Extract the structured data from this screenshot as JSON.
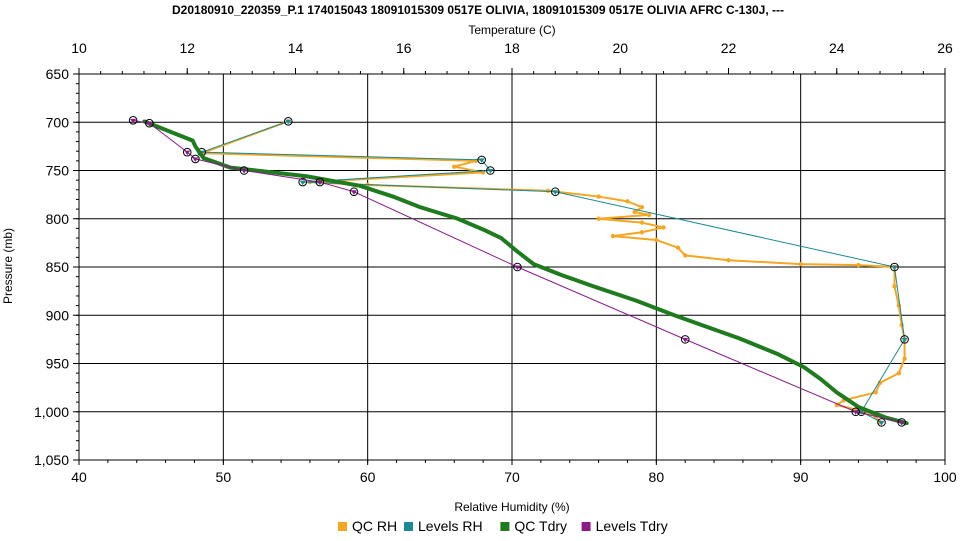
{
  "chart_data": {
    "type": "line",
    "title": "D20180910_220359_P.1 174015043 18091015309 0517E OLIVIA, 18091015309 0517E OLIVIA AFRC C-130J, ---",
    "top_axis": {
      "label": "Temperature (C)",
      "range": [
        10,
        26
      ],
      "ticks": [
        "10",
        "12",
        "14",
        "16",
        "18",
        "20",
        "22",
        "24",
        "26"
      ]
    },
    "bottom_axis": {
      "label": "Relative Humidity (%)",
      "range": [
        40,
        100
      ],
      "ticks": [
        "40",
        "50",
        "60",
        "70",
        "80",
        "90",
        "100"
      ]
    },
    "y_axis": {
      "label": "Pressure (mb)",
      "range": [
        650,
        1050
      ],
      "inverted": true,
      "ticks": [
        "650",
        "700",
        "750",
        "800",
        "850",
        "900",
        "950",
        "1,000",
        "1,050"
      ]
    },
    "grid": true,
    "legend_placement": "bottom",
    "colors": {
      "qc_rh": "#F5A623",
      "levels_rh": "#1A8A94",
      "qc_tdry": "#1E7B1E",
      "levels_tdry": "#8B1A8B"
    },
    "series": [
      {
        "name": "QC RH",
        "axis": "rh",
        "color": "#F5A623",
        "points": [
          [
            54.5,
            699
          ],
          [
            48.5,
            732
          ],
          [
            67.5,
            740
          ],
          [
            66,
            746
          ],
          [
            68,
            752
          ],
          [
            56,
            762
          ],
          [
            60,
            765
          ],
          [
            72.5,
            771
          ],
          [
            76,
            777
          ],
          [
            78,
            782
          ],
          [
            79,
            788
          ],
          [
            78.5,
            793
          ],
          [
            79.5,
            796
          ],
          [
            76,
            800
          ],
          [
            79,
            804
          ],
          [
            80.5,
            809
          ],
          [
            79,
            814
          ],
          [
            77,
            818
          ],
          [
            80,
            822
          ],
          [
            81.5,
            830
          ],
          [
            82,
            838
          ],
          [
            85,
            843
          ],
          [
            90,
            847
          ],
          [
            94,
            848
          ],
          [
            96.5,
            850
          ],
          [
            96.5,
            870
          ],
          [
            96.8,
            890
          ],
          [
            97,
            910
          ],
          [
            97.2,
            925
          ],
          [
            97.2,
            945
          ],
          [
            96.8,
            960
          ],
          [
            95.5,
            970
          ],
          [
            95.2,
            980
          ],
          [
            93,
            988
          ],
          [
            92.5,
            993
          ],
          [
            94.5,
            1000
          ],
          [
            95.2,
            1005
          ],
          [
            95.5,
            1011
          ]
        ]
      },
      {
        "name": "Levels RH",
        "axis": "rh",
        "color": "#1A8A94",
        "points": [
          [
            54.5,
            699
          ],
          [
            48.5,
            731
          ],
          [
            67.9,
            739
          ],
          [
            68.5,
            750
          ],
          [
            55.5,
            762
          ],
          [
            73,
            772
          ],
          [
            96.5,
            850
          ],
          [
            97.2,
            925
          ],
          [
            94.2,
            1000
          ],
          [
            95.6,
            1011
          ]
        ]
      },
      {
        "name": "QC Tdry",
        "axis": "temp",
        "color": "#1E7B1E",
        "points": [
          [
            11.2,
            699
          ],
          [
            12.1,
            719
          ],
          [
            12.15,
            725
          ],
          [
            12.3,
            737
          ],
          [
            12.8,
            747
          ],
          [
            14.2,
            756
          ],
          [
            15.2,
            766
          ],
          [
            15.8,
            777
          ],
          [
            16.3,
            788
          ],
          [
            17,
            800
          ],
          [
            17.5,
            812
          ],
          [
            17.8,
            820
          ],
          [
            18.1,
            834
          ],
          [
            18.4,
            847
          ],
          [
            18.9,
            858
          ],
          [
            19.5,
            870
          ],
          [
            20.3,
            885
          ],
          [
            21,
            900
          ],
          [
            21.6,
            912
          ],
          [
            22.2,
            924
          ],
          [
            22.9,
            940
          ],
          [
            23.4,
            954
          ],
          [
            23.7,
            966
          ],
          [
            24.0,
            980
          ],
          [
            24.4,
            995
          ],
          [
            24.9,
            1006
          ],
          [
            25.3,
            1012
          ]
        ]
      },
      {
        "name": "Levels Tdry",
        "axis": "temp",
        "color": "#8B1A8B",
        "points": [
          [
            11.0,
            698
          ],
          [
            11.3,
            701
          ],
          [
            12.0,
            731
          ],
          [
            12.15,
            738
          ],
          [
            13.05,
            750
          ],
          [
            14.45,
            762
          ],
          [
            15.08,
            772
          ],
          [
            18.1,
            850
          ],
          [
            21.2,
            925
          ],
          [
            24.35,
            1000
          ],
          [
            25.2,
            1011
          ]
        ]
      }
    ]
  }
}
